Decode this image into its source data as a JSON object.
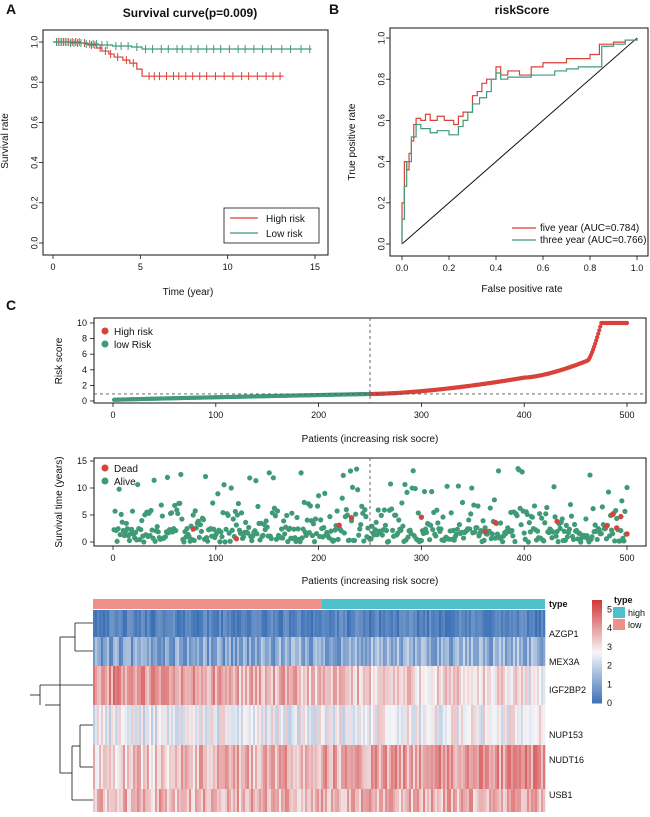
{
  "panels": {
    "a": "A",
    "b": "B",
    "c": "C"
  },
  "colors": {
    "red": "#D9423B",
    "green": "#3F9A78",
    "high": "#4EC0C9",
    "low": "#F0908C",
    "hm_low": "#3A6FB5",
    "hm_mid": "#F5F6F8",
    "hm_high": "#D23A3A",
    "vdash": "#555555"
  },
  "chart_data": [
    {
      "id": "survival",
      "type": "line",
      "title": "Survival curve(p=0.009)",
      "xlabel": "Time (year)",
      "ylabel": "Survival rate",
      "xlim": [
        0,
        15
      ],
      "ylim": [
        0,
        1
      ],
      "xticks": [
        0,
        5,
        10,
        15
      ],
      "yticks": [
        0.0,
        0.2,
        0.4,
        0.6,
        0.8,
        1.0
      ],
      "legend": [
        "High risk",
        "Low risk"
      ],
      "series": [
        {
          "name": "High risk",
          "color": "#D9423B",
          "steps": [
            [
              0,
              1.0
            ],
            [
              1.6,
              0.995
            ],
            [
              2.0,
              0.985
            ],
            [
              2.5,
              0.97
            ],
            [
              2.8,
              0.955
            ],
            [
              3.2,
              0.94
            ],
            [
              3.5,
              0.925
            ],
            [
              4.0,
              0.91
            ],
            [
              4.4,
              0.895
            ],
            [
              4.8,
              0.865
            ],
            [
              5.1,
              0.83
            ],
            [
              13.2,
              0.83
            ]
          ],
          "censor": [
            0.3,
            0.5,
            0.7,
            0.9,
            1.1,
            1.3,
            1.5,
            1.8,
            2.2,
            2.4,
            2.7,
            3.0,
            3.3,
            3.7,
            4.2,
            4.6,
            5.5,
            5.8,
            6.1,
            6.5,
            6.9,
            7.2,
            7.6,
            8.0,
            8.4,
            8.8,
            9.3,
            9.8,
            10.3,
            10.8,
            11.2,
            11.7,
            12.2,
            12.6,
            13.0
          ]
        },
        {
          "name": "Low risk",
          "color": "#3F9A78",
          "steps": [
            [
              0,
              1.0
            ],
            [
              1.0,
              0.995
            ],
            [
              1.8,
              0.99
            ],
            [
              2.6,
              0.985
            ],
            [
              3.4,
              0.98
            ],
            [
              4.5,
              0.975
            ],
            [
              5.1,
              0.965
            ],
            [
              14.8,
              0.965
            ]
          ],
          "censor": [
            0.2,
            0.4,
            0.6,
            0.8,
            1.0,
            1.2,
            1.4,
            1.6,
            1.9,
            2.1,
            2.3,
            2.5,
            2.8,
            3.1,
            3.6,
            3.9,
            4.3,
            4.8,
            5.3,
            5.7,
            6.2,
            6.6,
            7.1,
            7.4,
            7.9,
            8.3,
            8.8,
            9.2,
            9.6,
            10.1,
            10.6,
            11.0,
            11.5,
            12.0,
            12.5,
            13.1,
            13.6,
            14.2,
            14.7
          ]
        }
      ]
    },
    {
      "id": "roc",
      "type": "line",
      "title": "riskScore",
      "xlabel": "False positive rate",
      "ylabel": "True positive rate",
      "xlim": [
        0,
        1
      ],
      "ylim": [
        0,
        1
      ],
      "xticks": [
        0.0,
        0.2,
        0.4,
        0.6,
        0.8,
        1.0
      ],
      "yticks": [
        0.0,
        0.2,
        0.4,
        0.6,
        0.8,
        1.0
      ],
      "series": [
        {
          "name": "five year (AUC=0.784)",
          "color": "#D9423B",
          "points": [
            [
              0,
              0
            ],
            [
              0,
              0.2
            ],
            [
              0.01,
              0.4
            ],
            [
              0.02,
              0.36
            ],
            [
              0.03,
              0.44
            ],
            [
              0.04,
              0.5
            ],
            [
              0.05,
              0.58
            ],
            [
              0.06,
              0.61
            ],
            [
              0.08,
              0.6
            ],
            [
              0.1,
              0.63
            ],
            [
              0.12,
              0.6
            ],
            [
              0.15,
              0.62
            ],
            [
              0.18,
              0.6
            ],
            [
              0.22,
              0.58
            ],
            [
              0.24,
              0.62
            ],
            [
              0.26,
              0.64
            ],
            [
              0.28,
              0.64
            ],
            [
              0.3,
              0.72
            ],
            [
              0.32,
              0.74
            ],
            [
              0.34,
              0.78
            ],
            [
              0.36,
              0.8
            ],
            [
              0.38,
              0.8
            ],
            [
              0.4,
              0.86
            ],
            [
              0.42,
              0.82
            ],
            [
              0.45,
              0.84
            ],
            [
              0.5,
              0.82
            ],
            [
              0.55,
              0.86
            ],
            [
              0.6,
              0.88
            ],
            [
              0.65,
              0.88
            ],
            [
              0.7,
              0.9
            ],
            [
              0.75,
              0.9
            ],
            [
              0.8,
              0.92
            ],
            [
              0.83,
              0.92
            ],
            [
              0.84,
              0.97
            ],
            [
              0.9,
              0.98
            ],
            [
              0.95,
              0.99
            ],
            [
              1.0,
              1.0
            ]
          ]
        },
        {
          "name": "three year (AUC=0.766)",
          "color": "#3F9A78",
          "points": [
            [
              0,
              0
            ],
            [
              0,
              0.12
            ],
            [
              0.01,
              0.28
            ],
            [
              0.02,
              0.4
            ],
            [
              0.04,
              0.52
            ],
            [
              0.06,
              0.58
            ],
            [
              0.08,
              0.56
            ],
            [
              0.1,
              0.56
            ],
            [
              0.12,
              0.54
            ],
            [
              0.15,
              0.55
            ],
            [
              0.2,
              0.53
            ],
            [
              0.24,
              0.57
            ],
            [
              0.26,
              0.6
            ],
            [
              0.28,
              0.64
            ],
            [
              0.3,
              0.68
            ],
            [
              0.33,
              0.71
            ],
            [
              0.36,
              0.74
            ],
            [
              0.38,
              0.8
            ],
            [
              0.4,
              0.83
            ],
            [
              0.42,
              0.8
            ],
            [
              0.45,
              0.81
            ],
            [
              0.5,
              0.81
            ],
            [
              0.55,
              0.82
            ],
            [
              0.6,
              0.82
            ],
            [
              0.65,
              0.84
            ],
            [
              0.7,
              0.85
            ],
            [
              0.75,
              0.86
            ],
            [
              0.8,
              0.86
            ],
            [
              0.84,
              0.86
            ],
            [
              0.85,
              0.96
            ],
            [
              0.9,
              0.97
            ],
            [
              0.95,
              0.99
            ],
            [
              1.0,
              1.0
            ]
          ]
        }
      ]
    },
    {
      "id": "riskscore",
      "type": "scatter",
      "ylabel": "Risk score",
      "xlabel": "Patients (increasing risk socre)",
      "xlim": [
        0,
        500
      ],
      "ylim": [
        0,
        10
      ],
      "xticks": [
        0,
        100,
        200,
        300,
        400,
        500
      ],
      "yticks": [
        0,
        2,
        4,
        6,
        8,
        10
      ],
      "cutoff_index": 250,
      "cutoff_value": 0.9,
      "legend": [
        "High risk",
        "low Risk"
      ]
    },
    {
      "id": "survtime",
      "type": "scatter",
      "ylabel": "Survival time (years)",
      "xlabel": "Patients (increasing risk socre)",
      "xlim": [
        0,
        500
      ],
      "ylim": [
        0,
        15
      ],
      "xticks": [
        0,
        100,
        200,
        300,
        400,
        500
      ],
      "yticks": [
        0,
        5,
        10,
        15
      ],
      "cutoff_index": 250,
      "legend": [
        "Dead",
        "Alive"
      ],
      "dead_patients": [
        [
          78,
          2.4
        ],
        [
          120,
          0.6
        ],
        [
          220,
          3.1
        ],
        [
          232,
          4.5
        ],
        [
          300,
          4.6
        ],
        [
          362,
          1.9
        ],
        [
          372,
          3.6
        ],
        [
          432,
          3.8
        ],
        [
          480,
          2.9
        ],
        [
          486,
          5.1
        ],
        [
          490,
          2.6
        ],
        [
          494,
          4.7
        ],
        [
          500,
          1.5
        ]
      ]
    },
    {
      "id": "heatmap",
      "type": "heatmap",
      "genes": [
        "AZGP1",
        "MEX3A",
        "IGF2BP2",
        "NUP153",
        "NUDT16",
        "USB1"
      ],
      "annotation_label": "type",
      "legend_title": "type",
      "legend_items": [
        "high",
        "low"
      ],
      "colorbar_ticks": [
        0,
        1,
        2,
        3,
        4,
        5
      ],
      "colorbar_range": [
        0,
        5.5
      ],
      "gene_means": [
        0.4,
        1.0,
        4.2,
        2.6,
        3.4,
        3.7
      ],
      "low_count": 250
    }
  ]
}
